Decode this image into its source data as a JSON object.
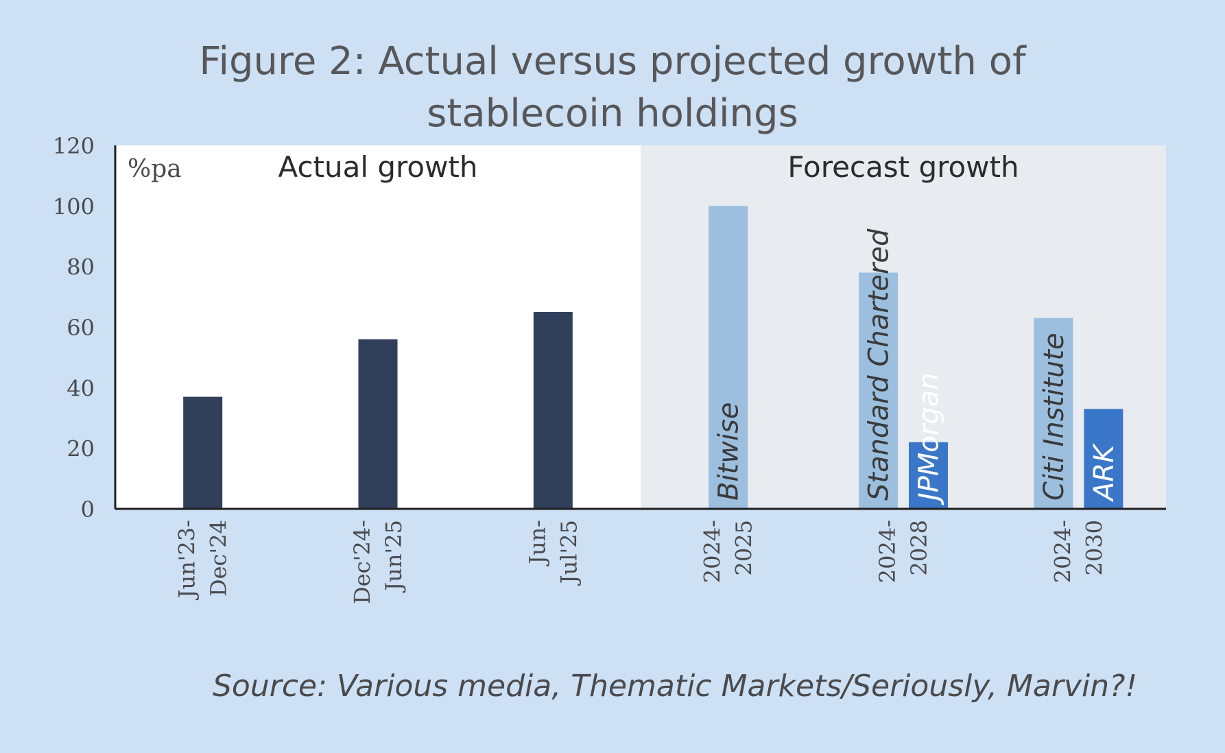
{
  "title_lines": [
    "Figure 2: Actual versus projected growth of",
    "stablecoin holdings"
  ],
  "source": "Source: Various media, Thematic Markets/Seriously, Marvin?!",
  "chart_data": {
    "type": "bar",
    "title": "Figure 2: Actual versus projected growth of stablecoin holdings",
    "ylabel": "%pa",
    "ylim": [
      0,
      120
    ],
    "yticks": [
      0,
      20,
      40,
      60,
      80,
      100,
      120
    ],
    "grid": false,
    "regions": [
      {
        "label": "Actual growth",
        "from_group": 0,
        "to_group": 2
      },
      {
        "label": "Forecast growth",
        "from_group": 3,
        "to_group": 5
      }
    ],
    "categories": [
      [
        "Jun'23-",
        "Dec'24"
      ],
      [
        "Dec'24-",
        "Jun'25"
      ],
      [
        "Jun-",
        "Jul'25"
      ],
      [
        "2024-",
        "2025"
      ],
      [
        "2024-",
        "2028"
      ],
      [
        "2024-",
        "2030"
      ]
    ],
    "series": [
      {
        "name": "Actual",
        "color": "#323f5b",
        "values": [
          37,
          56,
          65,
          null,
          null,
          null
        ],
        "bar_labels": [
          null,
          null,
          null,
          null,
          null,
          null
        ]
      },
      {
        "name": "Forecast",
        "color": "#9dbfdf",
        "values": [
          null,
          null,
          null,
          100,
          78,
          63
        ],
        "bar_labels": [
          null,
          null,
          null,
          "Bitwise",
          "Standard Chartered",
          "Citi Institute"
        ],
        "label_color": "#3a3a3a"
      },
      {
        "name": "Forecast (alternative)",
        "color": "#3a77c9",
        "values": [
          null,
          null,
          null,
          null,
          22,
          33
        ],
        "bar_labels": [
          null,
          null,
          null,
          null,
          "JPMorgan",
          "ARK"
        ],
        "label_color": "#ffffff"
      }
    ],
    "colors": {
      "axis": "#1e1e1e",
      "tick_text": "#4a4a4d",
      "actual_bg": "#ffffff",
      "forecast_bg": "#e8ebf0",
      "region_text": "#2b2b2b",
      "unit_text": "#4a4a4d"
    }
  }
}
